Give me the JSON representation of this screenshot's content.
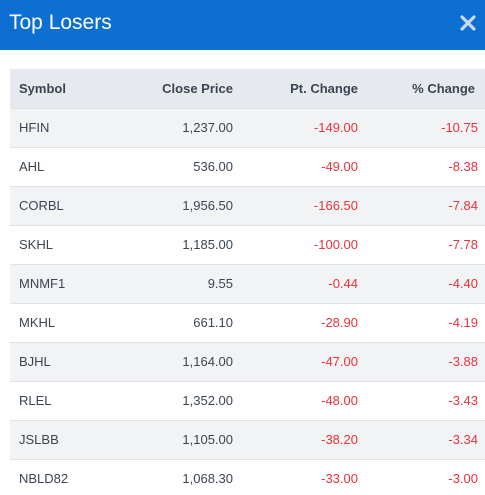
{
  "modal": {
    "title": "Top Losers",
    "close_icon": "close-icon"
  },
  "colors": {
    "header_bg": "#0e6fd3",
    "negative": "#e8323c",
    "table_header_bg": "#e6e9ee"
  },
  "table": {
    "headers": {
      "symbol": "Symbol",
      "close_price": "Close Price",
      "pt_change": "Pt. Change",
      "pct_change": "% Change"
    },
    "rows": [
      {
        "symbol": "HFIN",
        "close_price": "1,237.00",
        "pt_change": "-149.00",
        "pct_change": "-10.75"
      },
      {
        "symbol": "AHL",
        "close_price": "536.00",
        "pt_change": "-49.00",
        "pct_change": "-8.38"
      },
      {
        "symbol": "CORBL",
        "close_price": "1,956.50",
        "pt_change": "-166.50",
        "pct_change": "-7.84"
      },
      {
        "symbol": "SKHL",
        "close_price": "1,185.00",
        "pt_change": "-100.00",
        "pct_change": "-7.78"
      },
      {
        "symbol": "MNMF1",
        "close_price": "9.55",
        "pt_change": "-0.44",
        "pct_change": "-4.40"
      },
      {
        "symbol": "MKHL",
        "close_price": "661.10",
        "pt_change": "-28.90",
        "pct_change": "-4.19"
      },
      {
        "symbol": "BJHL",
        "close_price": "1,164.00",
        "pt_change": "-47.00",
        "pct_change": "-3.88"
      },
      {
        "symbol": "RLEL",
        "close_price": "1,352.00",
        "pt_change": "-48.00",
        "pct_change": "-3.43"
      },
      {
        "symbol": "JSLBB",
        "close_price": "1,105.00",
        "pt_change": "-38.20",
        "pct_change": "-3.34"
      },
      {
        "symbol": "NBLD82",
        "close_price": "1,068.30",
        "pt_change": "-33.00",
        "pct_change": "-3.00"
      }
    ]
  }
}
